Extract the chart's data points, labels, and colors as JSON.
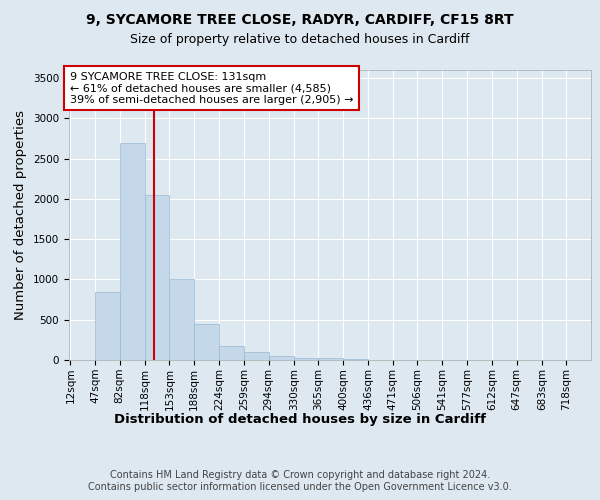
{
  "title1": "9, SYCAMORE TREE CLOSE, RADYR, CARDIFF, CF15 8RT",
  "title2": "Size of property relative to detached houses in Cardiff",
  "xlabel": "Distribution of detached houses by size in Cardiff",
  "ylabel": "Number of detached properties",
  "bin_labels": [
    "12sqm",
    "47sqm",
    "82sqm",
    "118sqm",
    "153sqm",
    "188sqm",
    "224sqm",
    "259sqm",
    "294sqm",
    "330sqm",
    "365sqm",
    "400sqm",
    "436sqm",
    "471sqm",
    "506sqm",
    "541sqm",
    "577sqm",
    "612sqm",
    "647sqm",
    "683sqm",
    "718sqm"
  ],
  "bin_edges": [
    12,
    47,
    82,
    118,
    153,
    188,
    224,
    259,
    294,
    330,
    365,
    400,
    436,
    471,
    506,
    541,
    577,
    612,
    647,
    683,
    718
  ],
  "bar_heights": [
    5,
    850,
    2700,
    2050,
    1000,
    450,
    180,
    100,
    50,
    20,
    30,
    10,
    5,
    5,
    5,
    5,
    5,
    5,
    5,
    5
  ],
  "bar_color": "#c5d8ea",
  "bar_edge_color": "#9ab8d0",
  "vline_x": 131,
  "vline_color": "#cc0000",
  "annotation_text": "9 SYCAMORE TREE CLOSE: 131sqm\n← 61% of detached houses are smaller (4,585)\n39% of semi-detached houses are larger (2,905) →",
  "annotation_box_color": "#cc0000",
  "ylim": [
    0,
    3600
  ],
  "yticks": [
    0,
    500,
    1000,
    1500,
    2000,
    2500,
    3000,
    3500
  ],
  "background_color": "#dde8f0",
  "plot_bg_color": "#dde8f0",
  "grid_color": "#ffffff",
  "footer": "Contains HM Land Registry data © Crown copyright and database right 2024.\nContains public sector information licensed under the Open Government Licence v3.0.",
  "title_fontsize": 10,
  "subtitle_fontsize": 9,
  "axis_label_fontsize": 9.5,
  "tick_fontsize": 7.5,
  "annotation_fontsize": 8,
  "footer_fontsize": 7
}
